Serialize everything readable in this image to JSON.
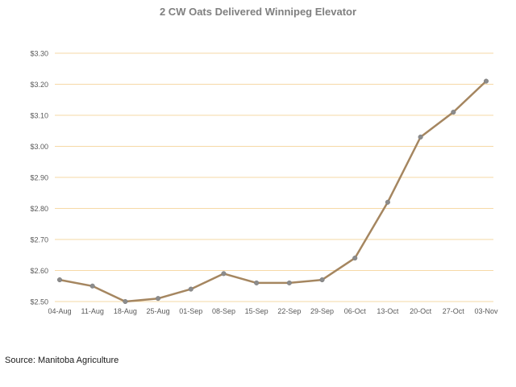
{
  "chart_data": {
    "type": "line",
    "title": "2 CW Oats Delivered Winnipeg Elevator",
    "xlabel": "",
    "ylabel": "",
    "categories": [
      "04-Aug",
      "11-Aug",
      "18-Aug",
      "25-Aug",
      "01-Sep",
      "08-Sep",
      "15-Sep",
      "22-Sep",
      "29-Sep",
      "06-Oct",
      "13-Oct",
      "20-Oct",
      "27-Oct",
      "03-Nov"
    ],
    "series": [
      {
        "values": [
          2.57,
          2.55,
          2.5,
          2.51,
          2.54,
          2.59,
          2.56,
          2.56,
          2.57,
          2.64,
          2.82,
          3.03,
          3.11,
          3.21
        ],
        "color": "#a58660"
      }
    ],
    "ylim": [
      2.5,
      3.3
    ],
    "yticks": [
      2.5,
      2.6,
      2.7,
      2.8,
      2.9,
      3.0,
      3.1,
      3.2,
      3.3
    ],
    "ytick_labels": [
      "$2.50",
      "$2.60",
      "$2.70",
      "$2.80",
      "$2.90",
      "$3.00",
      "$3.10",
      "$3.20",
      "$3.30"
    ],
    "grid": true,
    "gridline_color": "#f6d9a6",
    "marker_color": "#8c8c8c",
    "legend": "none"
  },
  "source": "Source: Manitoba Agriculture"
}
